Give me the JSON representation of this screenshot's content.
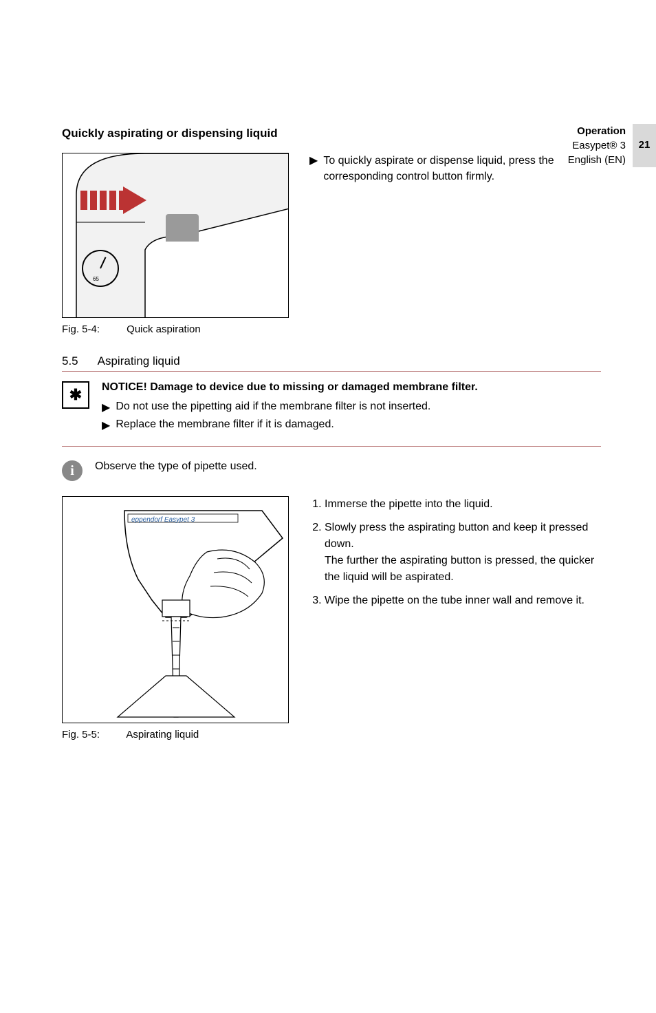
{
  "header": {
    "section": "Operation",
    "product": "Easypet® 3",
    "language": "English (EN)",
    "page_number": "21"
  },
  "subheading1": "Quickly aspirating or dispensing liquid",
  "fig54": {
    "number": "Fig. 5-4:",
    "caption": "Quick aspiration",
    "gauge_value": "65"
  },
  "quick_text": "To quickly aspirate or dispense liquid, press the corresponding control button firmly.",
  "section55": {
    "num": "5.5",
    "title": "Aspirating liquid"
  },
  "notice": {
    "title": "NOTICE! Damage to device due to missing or damaged membrane filter.",
    "items": [
      "Do not use the pipetting aid if the membrane filter is not inserted.",
      "Replace the membrane filter if it is damaged."
    ]
  },
  "info_text": "Observe the type of pipette used.",
  "fig55": {
    "number": "Fig. 5-5:",
    "caption": "Aspirating liquid",
    "brand": "eppendorf  Easypet 3"
  },
  "steps": [
    "Immerse the pipette into the liquid.",
    "Slowly press the aspirating button and keep it pressed down.\nThe further the aspirating button is pressed, the quicker the liquid will be aspirated.",
    "Wipe the pipette on the tube inner wall and remove it."
  ],
  "colors": {
    "rule": "#b36b6b",
    "tab_bg": "#d9d9d9",
    "accent_red": "#b33"
  }
}
